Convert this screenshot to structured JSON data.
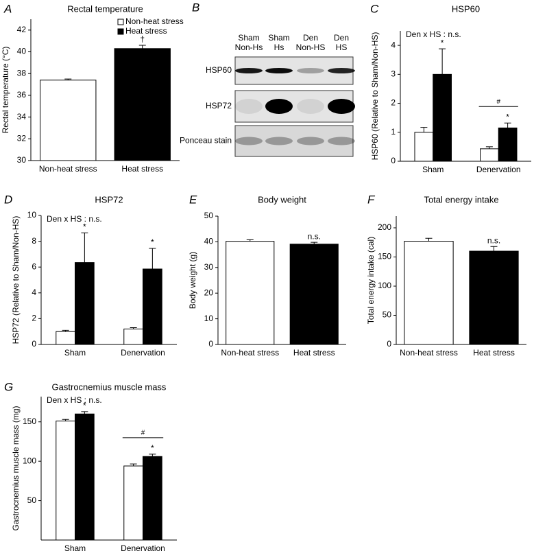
{
  "chart_data": [
    {
      "type": "bar",
      "panel": "A",
      "title": "Rectal temperature",
      "ylabel": "Rectal temperature (°C)",
      "categories": [
        "Non-heat stress",
        "Heat stress"
      ],
      "values": [
        37.4,
        40.3
      ],
      "errors": [
        0.1,
        0.3
      ],
      "colors": [
        "#ffffff",
        "#000000"
      ],
      "value_marks": [
        null,
        "†"
      ],
      "ylim": [
        30,
        43
      ],
      "yticks": [
        30,
        32,
        34,
        36,
        38,
        40,
        42
      ],
      "legend": {
        "corner": "top-right",
        "items": [
          {
            "name": "Non-heat stress",
            "color": "#ffffff"
          },
          {
            "name": "Heat stress",
            "color": "#000000"
          }
        ]
      }
    },
    {
      "type": "grouped-bar",
      "panel": "C",
      "title": "HSP60",
      "ylabel": "HSP60 (Relative to Sham/Non-HS)",
      "note": "Den x HS : n.s.",
      "categories": [
        "Sham",
        "Denervation"
      ],
      "series": [
        {
          "color": "#ffffff",
          "values": [
            1.0,
            0.43
          ],
          "errors": [
            0.17,
            0.07
          ],
          "value_marks": [
            null,
            null
          ]
        },
        {
          "color": "#000000",
          "values": [
            3.0,
            1.15
          ],
          "errors": [
            0.88,
            0.17
          ],
          "value_marks": [
            "*",
            "*"
          ]
        }
      ],
      "bracket": {
        "label": "#",
        "category": 1
      },
      "ylim": [
        0,
        4.5
      ],
      "yticks": [
        0,
        1,
        2,
        3,
        4
      ]
    },
    {
      "type": "grouped-bar",
      "panel": "D",
      "title": "HSP72",
      "ylabel": "HSP72 (Relative to Sham/Non-HS)",
      "note": "Den x HS : n.s.",
      "categories": [
        "Sham",
        "Denervation"
      ],
      "series": [
        {
          "color": "#ffffff",
          "values": [
            1.0,
            1.2
          ],
          "errors": [
            0.1,
            0.1
          ],
          "value_marks": [
            null,
            null
          ]
        },
        {
          "color": "#000000",
          "values": [
            6.35,
            5.85
          ],
          "errors": [
            2.3,
            1.6
          ],
          "value_marks": [
            "*",
            "*"
          ]
        }
      ],
      "ylim": [
        0,
        10
      ],
      "yticks": [
        0,
        2,
        4,
        6,
        8,
        10
      ]
    },
    {
      "type": "bar",
      "panel": "E",
      "title": "Body weight",
      "ylabel": "Body weight (g)",
      "categories": [
        "Non-heat stress",
        "Heat stress"
      ],
      "values": [
        40.2,
        39.1
      ],
      "errors": [
        0.6,
        0.7
      ],
      "colors": [
        "#ffffff",
        "#000000"
      ],
      "value_marks": [
        null,
        "n.s."
      ],
      "ylim": [
        0,
        50
      ],
      "yticks": [
        0,
        10,
        20,
        30,
        40,
        50
      ]
    },
    {
      "type": "bar",
      "panel": "F",
      "title": "Total energy intake",
      "ylabel": "Total energy intake (cal)",
      "categories": [
        "Non-heat stress",
        "Heat stress"
      ],
      "values": [
        177,
        160
      ],
      "errors": [
        5,
        8
      ],
      "colors": [
        "#ffffff",
        "#000000"
      ],
      "value_marks": [
        null,
        "n.s."
      ],
      "ylim": [
        0,
        220
      ],
      "yticks": [
        0,
        50,
        100,
        150,
        200
      ]
    },
    {
      "type": "grouped-bar",
      "panel": "G",
      "title": "Gastrocnemius muscle mass",
      "ylabel": "Gastrocnemius muscle mass (mg)",
      "note": "Den x HS : n.s.",
      "categories": [
        "Sham",
        "Denervation"
      ],
      "series": [
        {
          "color": "#ffffff",
          "values": [
            151,
            94
          ],
          "errors": [
            2,
            2.5
          ],
          "value_marks": [
            null,
            null
          ]
        },
        {
          "color": "#000000",
          "values": [
            160,
            106
          ],
          "errors": [
            3,
            3
          ],
          "value_marks": [
            "*",
            "*"
          ]
        }
      ],
      "bracket": {
        "label": "#",
        "category": 1
      },
      "ylim": [
        0,
        182
      ],
      "yticks": [
        50,
        100,
        150
      ]
    }
  ],
  "blot": {
    "panel": "B",
    "columns": [
      [
        "Sham",
        "Non-Hs"
      ],
      [
        "Sham",
        "Hs"
      ],
      [
        "Den",
        "Non-HS"
      ],
      [
        "Den",
        "HS"
      ]
    ],
    "rows": [
      "HSP60",
      "HSP72",
      "Ponceau stain"
    ]
  }
}
